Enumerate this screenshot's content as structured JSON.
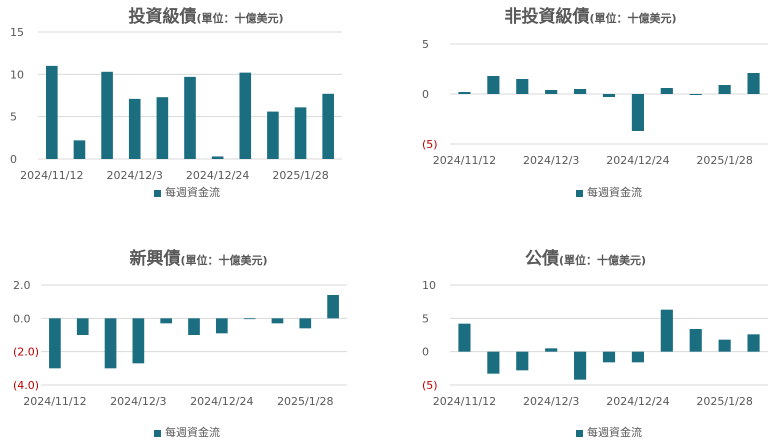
{
  "colors": {
    "bar": "#1a6e80",
    "grid": "#d9d9d9",
    "negative_label": "#c00000",
    "text": "#595959"
  },
  "chart_data": [
    {
      "type": "bar",
      "title": "投資級債",
      "unit": "(單位：十億美元)",
      "legend": [
        "每週資金流"
      ],
      "legend_position": "bottom",
      "grid": true,
      "ylim": [
        0,
        15
      ],
      "yticks": [
        0,
        5,
        10,
        15
      ],
      "ytick_labels": [
        "0",
        "5",
        "10",
        "15"
      ],
      "xtick_labels": [
        "2024/11/12",
        "2024/12/3",
        "2024/12/24",
        "2025/1/28"
      ],
      "series": [
        {
          "values": [
            11.0,
            2.2,
            10.3,
            7.1,
            7.3,
            9.7,
            0.3,
            10.2,
            5.6,
            6.1,
            7.7
          ]
        }
      ]
    },
    {
      "type": "bar",
      "title": "非投資級債",
      "unit": "(單位：十億美元)",
      "legend": [
        "每週資金流"
      ],
      "legend_position": "bottom",
      "grid": true,
      "ylim": [
        -5,
        5
      ],
      "yticks": [
        -5,
        0,
        5
      ],
      "ytick_labels": [
        "(5)",
        "0",
        "5"
      ],
      "xtick_labels": [
        "2024/11/12",
        "2024/12/3",
        "2024/12/24",
        "2025/1/28"
      ],
      "series": [
        {
          "values": [
            0.2,
            1.8,
            1.5,
            0.4,
            0.5,
            -0.3,
            -3.7,
            0.6,
            -0.1,
            0.9,
            2.1
          ]
        }
      ]
    },
    {
      "type": "bar",
      "title": "新興債",
      "unit": "(單位：十億美元)",
      "legend": [
        "每週資金流"
      ],
      "legend_position": "bottom",
      "grid": true,
      "ylim": [
        -4,
        2
      ],
      "yticks": [
        -4,
        -2,
        0,
        2
      ],
      "ytick_labels": [
        "(4.0)",
        "(2.0)",
        "0.0",
        "2.0"
      ],
      "xtick_labels": [
        "2024/11/12",
        "2024/12/3",
        "2024/12/24",
        "2025/1/28"
      ],
      "series": [
        {
          "values": [
            -3.0,
            -1.0,
            -3.0,
            -2.7,
            -0.3,
            -1.0,
            -0.9,
            0.0,
            -0.3,
            -0.6,
            1.4
          ]
        }
      ]
    },
    {
      "type": "bar",
      "title": "公債",
      "unit": "(單位：十億美元)",
      "legend": [
        "每週資金流"
      ],
      "legend_position": "bottom",
      "grid": true,
      "ylim": [
        -5,
        10
      ],
      "yticks": [
        -5,
        0,
        5,
        10
      ],
      "ytick_labels": [
        "(5)",
        "0",
        "5",
        "10"
      ],
      "xtick_labels": [
        "2024/11/12",
        "2024/12/3",
        "2024/12/24",
        "2025/1/28"
      ],
      "series": [
        {
          "values": [
            4.2,
            -3.3,
            -2.8,
            0.5,
            -4.2,
            -1.6,
            -1.6,
            6.3,
            3.4,
            1.8,
            2.6
          ]
        }
      ]
    }
  ]
}
